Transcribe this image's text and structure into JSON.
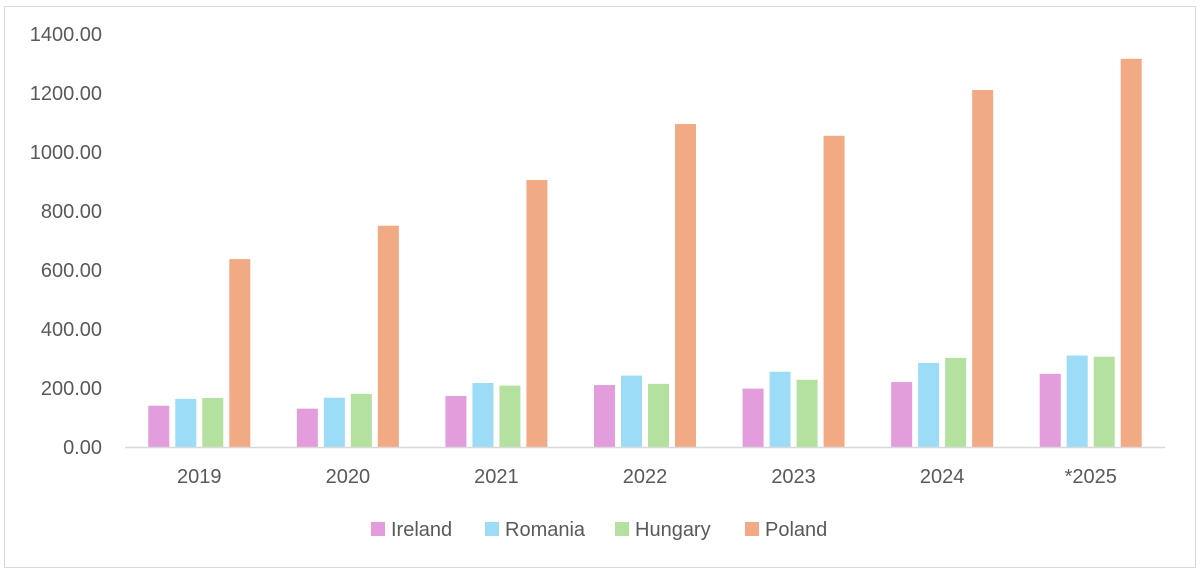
{
  "chart_data": {
    "type": "bar",
    "title": "",
    "xlabel": "",
    "ylabel": "",
    "categories": [
      "2019",
      "2020",
      "2021",
      "2022",
      "2023",
      "2024",
      "*2025"
    ],
    "y_ticks": [
      "0.00",
      "200.00",
      "400.00",
      "600.00",
      "800.00",
      "1000.00",
      "1200.00",
      "1400.00"
    ],
    "ylim": [
      0,
      1400
    ],
    "grid": false,
    "legend_position": "bottom",
    "series": [
      {
        "name": "Ireland",
        "color": "#e39cdc",
        "values": [
          140,
          130,
          173,
          210,
          198,
          220,
          248
        ]
      },
      {
        "name": "Romania",
        "color": "#9ddcf6",
        "values": [
          163,
          167,
          217,
          242,
          255,
          285,
          310
        ]
      },
      {
        "name": "Hungary",
        "color": "#b4e1a0",
        "values": [
          166,
          180,
          208,
          214,
          228,
          302,
          306
        ]
      },
      {
        "name": "Poland",
        "color": "#f2aa84",
        "values": [
          637,
          750,
          905,
          1095,
          1055,
          1210,
          1316
        ]
      }
    ]
  }
}
